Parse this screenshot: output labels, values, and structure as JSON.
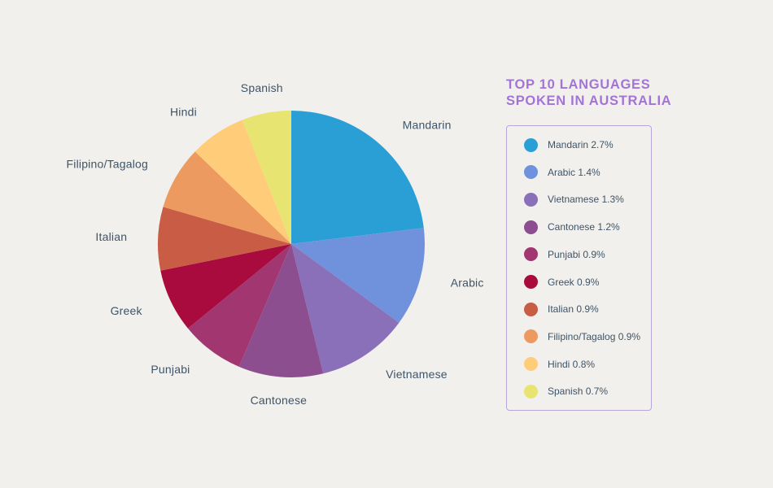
{
  "chart_data": {
    "type": "pie",
    "title": [
      "TOP 10 LANGUAGES",
      "SPOKEN IN AUSTRALIA"
    ],
    "slices": [
      {
        "label": "Mandarin",
        "value": 2.7,
        "legend": "Mandarin 2.7%",
        "color": "#2a9fd6"
      },
      {
        "label": "Arabic",
        "value": 1.4,
        "legend": "Arabic 1.4%",
        "color": "#7092dc"
      },
      {
        "label": "Vietnamese",
        "value": 1.3,
        "legend": "Vietnamese 1.3%",
        "color": "#8a70b8"
      },
      {
        "label": "Cantonese",
        "value": 1.2,
        "legend": "Cantonese 1.2%",
        "color": "#8d4e8f"
      },
      {
        "label": "Punjabi",
        "value": 0.9,
        "legend": "Punjabi 0.9%",
        "color": "#a13670"
      },
      {
        "label": "Greek",
        "value": 0.9,
        "legend": "Greek 0.9%",
        "color": "#aa0b3e"
      },
      {
        "label": "Italian",
        "value": 0.9,
        "legend": "Italian 0.9%",
        "color": "#c95c44"
      },
      {
        "label": "Filipino/Tagalog",
        "value": 0.9,
        "legend": "Filipino/Tagalog 0.9%",
        "color": "#ec9a60"
      },
      {
        "label": "Hindi",
        "value": 0.8,
        "legend": "Hindi 0.8%",
        "color": "#ffcc7a"
      },
      {
        "label": "Spanish",
        "value": 0.7,
        "legend": "Spanish 0.7%",
        "color": "#e8e472"
      }
    ]
  }
}
